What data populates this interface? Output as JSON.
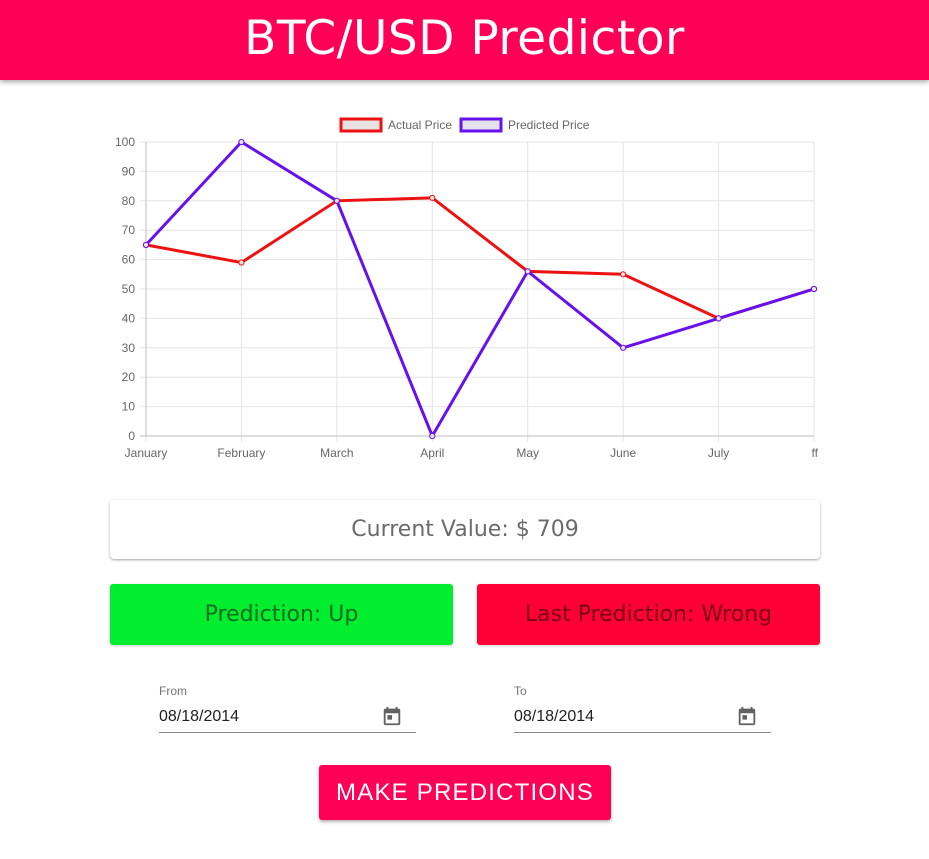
{
  "header": {
    "title": "BTC/USD Predictor"
  },
  "chart_data": {
    "type": "line",
    "categories": [
      "January",
      "February",
      "March",
      "April",
      "May",
      "June",
      "July",
      "ff"
    ],
    "series": [
      {
        "name": "Actual Price",
        "values": [
          65,
          59,
          80,
          81,
          56,
          55,
          40,
          50
        ],
        "color": "#ee1111",
        "fill": "#e8e2e2"
      },
      {
        "name": "Predicted Price",
        "values": [
          65,
          100,
          80,
          0,
          56,
          30,
          40,
          50
        ],
        "color": "#6611ee",
        "fill": "#e4e2ec"
      }
    ],
    "ylim": [
      0,
      100
    ],
    "yticks": [
      0,
      10,
      20,
      30,
      40,
      50,
      60,
      70,
      80,
      90,
      100
    ],
    "grid": true,
    "legend": "top-center"
  },
  "current": {
    "label": "Current Value: $ 709"
  },
  "prediction": {
    "label": "Prediction: Up",
    "color": "#00ee2e"
  },
  "last_prediction": {
    "label": "Last Prediction: Wrong",
    "color": "#ff0036"
  },
  "dates": {
    "from": {
      "label": "From",
      "value": "08/18/2014"
    },
    "to": {
      "label": "To",
      "value": "08/18/2014"
    }
  },
  "icons": {
    "date_picker": "calendar-icon"
  },
  "action": {
    "label": "MAKE PREDICTIONS"
  },
  "colors": {
    "brand": "#ff0057"
  }
}
